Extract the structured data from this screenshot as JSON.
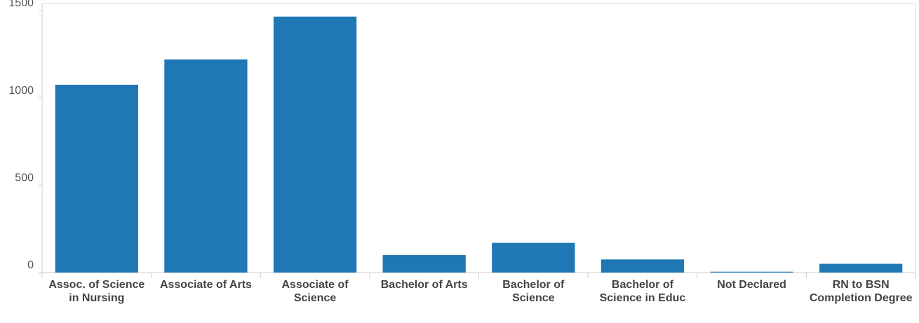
{
  "chart_data": {
    "type": "bar",
    "categories": [
      "Assoc. of Science in Nursing",
      "Associate of Arts",
      "Associate of Science",
      "Bachelor of Arts",
      "Bachelor of Science",
      "Bachelor of Science in Educ",
      "Not Declared",
      "RN to BSN Completion Degree"
    ],
    "values": [
      1075,
      1220,
      1465,
      100,
      170,
      75,
      5,
      50
    ],
    "color": "#1f77b4",
    "ylim": [
      0,
      1540
    ],
    "yticks": [
      0,
      500,
      1000,
      1500
    ],
    "grid": false
  }
}
